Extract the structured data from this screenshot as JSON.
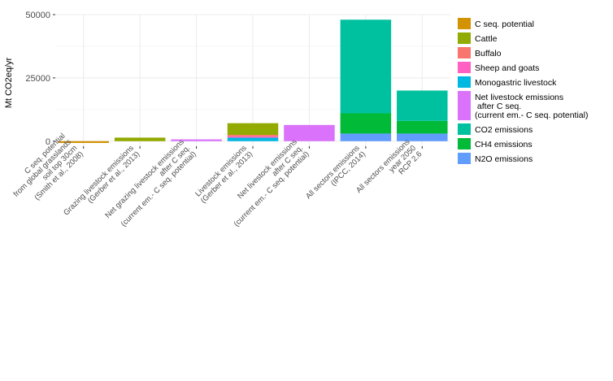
{
  "chart_data": {
    "type": "bar",
    "stacked": true,
    "ylabel": "Mt CO2eq/yr",
    "ylim": [
      -2000,
      50000
    ],
    "yticks": [
      0,
      25000,
      50000
    ],
    "ytick_labels": [
      "0",
      "25000",
      "50000"
    ],
    "grid": true,
    "legend_position": "right",
    "categories": [
      "C seq. potential\nfrom global grasslands\nsoil top 30cm\n(Smith et al., 2008)",
      "Grazing livestock emissions\n(Gerber et al., 2013)",
      "Net grazing livestock emissions\nafter C seq.\n(current em.- C seq. potential)",
      "Livestock emissions\n(Gerber et al., 2013)",
      "Net livestock emissions\nafter C seq.\n(current em.- C seq. potential)",
      "All sectors emissions\n(IPCC, 2014)",
      "All sectors emissions\nyear 2050\nRCP 2.6"
    ],
    "series": [
      {
        "name": "C seq. potential",
        "color": "#D39200",
        "values": [
          -700,
          0,
          0,
          0,
          0,
          0,
          0
        ]
      },
      {
        "name": "Cattle",
        "color": "#93AA00",
        "values": [
          0,
          1400,
          0,
          4600,
          0,
          0,
          0
        ]
      },
      {
        "name": "Buffalo",
        "color": "#F8766D",
        "values": [
          0,
          0,
          0,
          600,
          0,
          0,
          0
        ]
      },
      {
        "name": "Sheep and goats",
        "color": "#FF61C3",
        "values": [
          0,
          0,
          0,
          500,
          0,
          0,
          0
        ]
      },
      {
        "name": "Monogastric livestock",
        "color": "#00B9E3",
        "values": [
          0,
          0,
          0,
          1400,
          0,
          0,
          0
        ]
      },
      {
        "name": "Net livestock emissions\n after C seq.\n(current em.- C seq. potential)",
        "color": "#DB72FB",
        "values": [
          0,
          0,
          700,
          0,
          6400,
          0,
          0
        ]
      },
      {
        "name": "CO2 emissions",
        "color": "#00C19F",
        "values": [
          0,
          0,
          0,
          0,
          0,
          37000,
          12000
        ]
      },
      {
        "name": "CH4 emissions",
        "color": "#00BA38",
        "values": [
          0,
          0,
          0,
          0,
          0,
          8000,
          5000
        ]
      },
      {
        "name": "N2O emissions",
        "color": "#619CFF",
        "values": [
          0,
          0,
          0,
          0,
          0,
          3000,
          3000
        ]
      }
    ]
  }
}
